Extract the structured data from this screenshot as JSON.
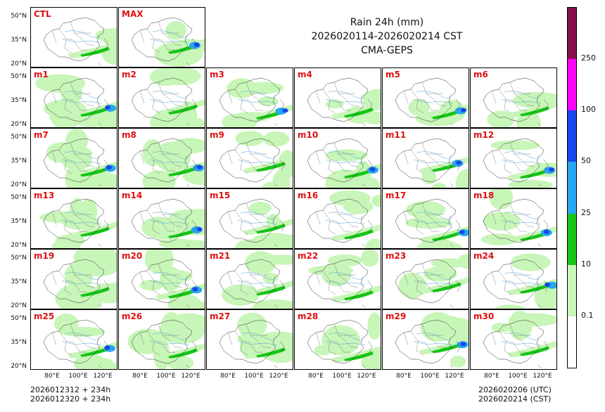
{
  "title": {
    "line1": "Rain 24h (mm)",
    "line2": "2026020114-2026020214 CST",
    "line3": "CMA-GEPS"
  },
  "panels": [
    {
      "label": "CTL"
    },
    {
      "label": "MAX"
    },
    {
      "label": "m1"
    },
    {
      "label": "m2"
    },
    {
      "label": "m3"
    },
    {
      "label": "m4"
    },
    {
      "label": "m5"
    },
    {
      "label": "m6"
    },
    {
      "label": "m7"
    },
    {
      "label": "m8"
    },
    {
      "label": "m9"
    },
    {
      "label": "m10"
    },
    {
      "label": "m11"
    },
    {
      "label": "m12"
    },
    {
      "label": "m13"
    },
    {
      "label": "m14"
    },
    {
      "label": "m15"
    },
    {
      "label": "m16"
    },
    {
      "label": "m17"
    },
    {
      "label": "m18"
    },
    {
      "label": "m19"
    },
    {
      "label": "m20"
    },
    {
      "label": "m21"
    },
    {
      "label": "m22"
    },
    {
      "label": "m23"
    },
    {
      "label": "m24"
    },
    {
      "label": "m25"
    },
    {
      "label": "m26"
    },
    {
      "label": "m27"
    },
    {
      "label": "m28"
    },
    {
      "label": "m29"
    },
    {
      "label": "m30"
    }
  ],
  "axes": {
    "lat_ticks": [
      "50°N",
      "35°N",
      "20°N"
    ],
    "lon_ticks": [
      "80°E",
      "100°E",
      "120°E"
    ]
  },
  "footer": {
    "left_line1": "2026012312 + 234h",
    "left_line2": "2026012320 + 234h",
    "right_line1": "2026020206 (UTC)",
    "right_line2": "2026020214 (CST)"
  },
  "colorbar": {
    "labels": [
      "0.1",
      "10",
      "25",
      "50",
      "100",
      "250"
    ],
    "colors": [
      "#ffffff",
      "#c8f5b8",
      "#16c516",
      "#28a6f0",
      "#1846f0",
      "#ff00ff",
      "#8a0f4f"
    ]
  }
}
